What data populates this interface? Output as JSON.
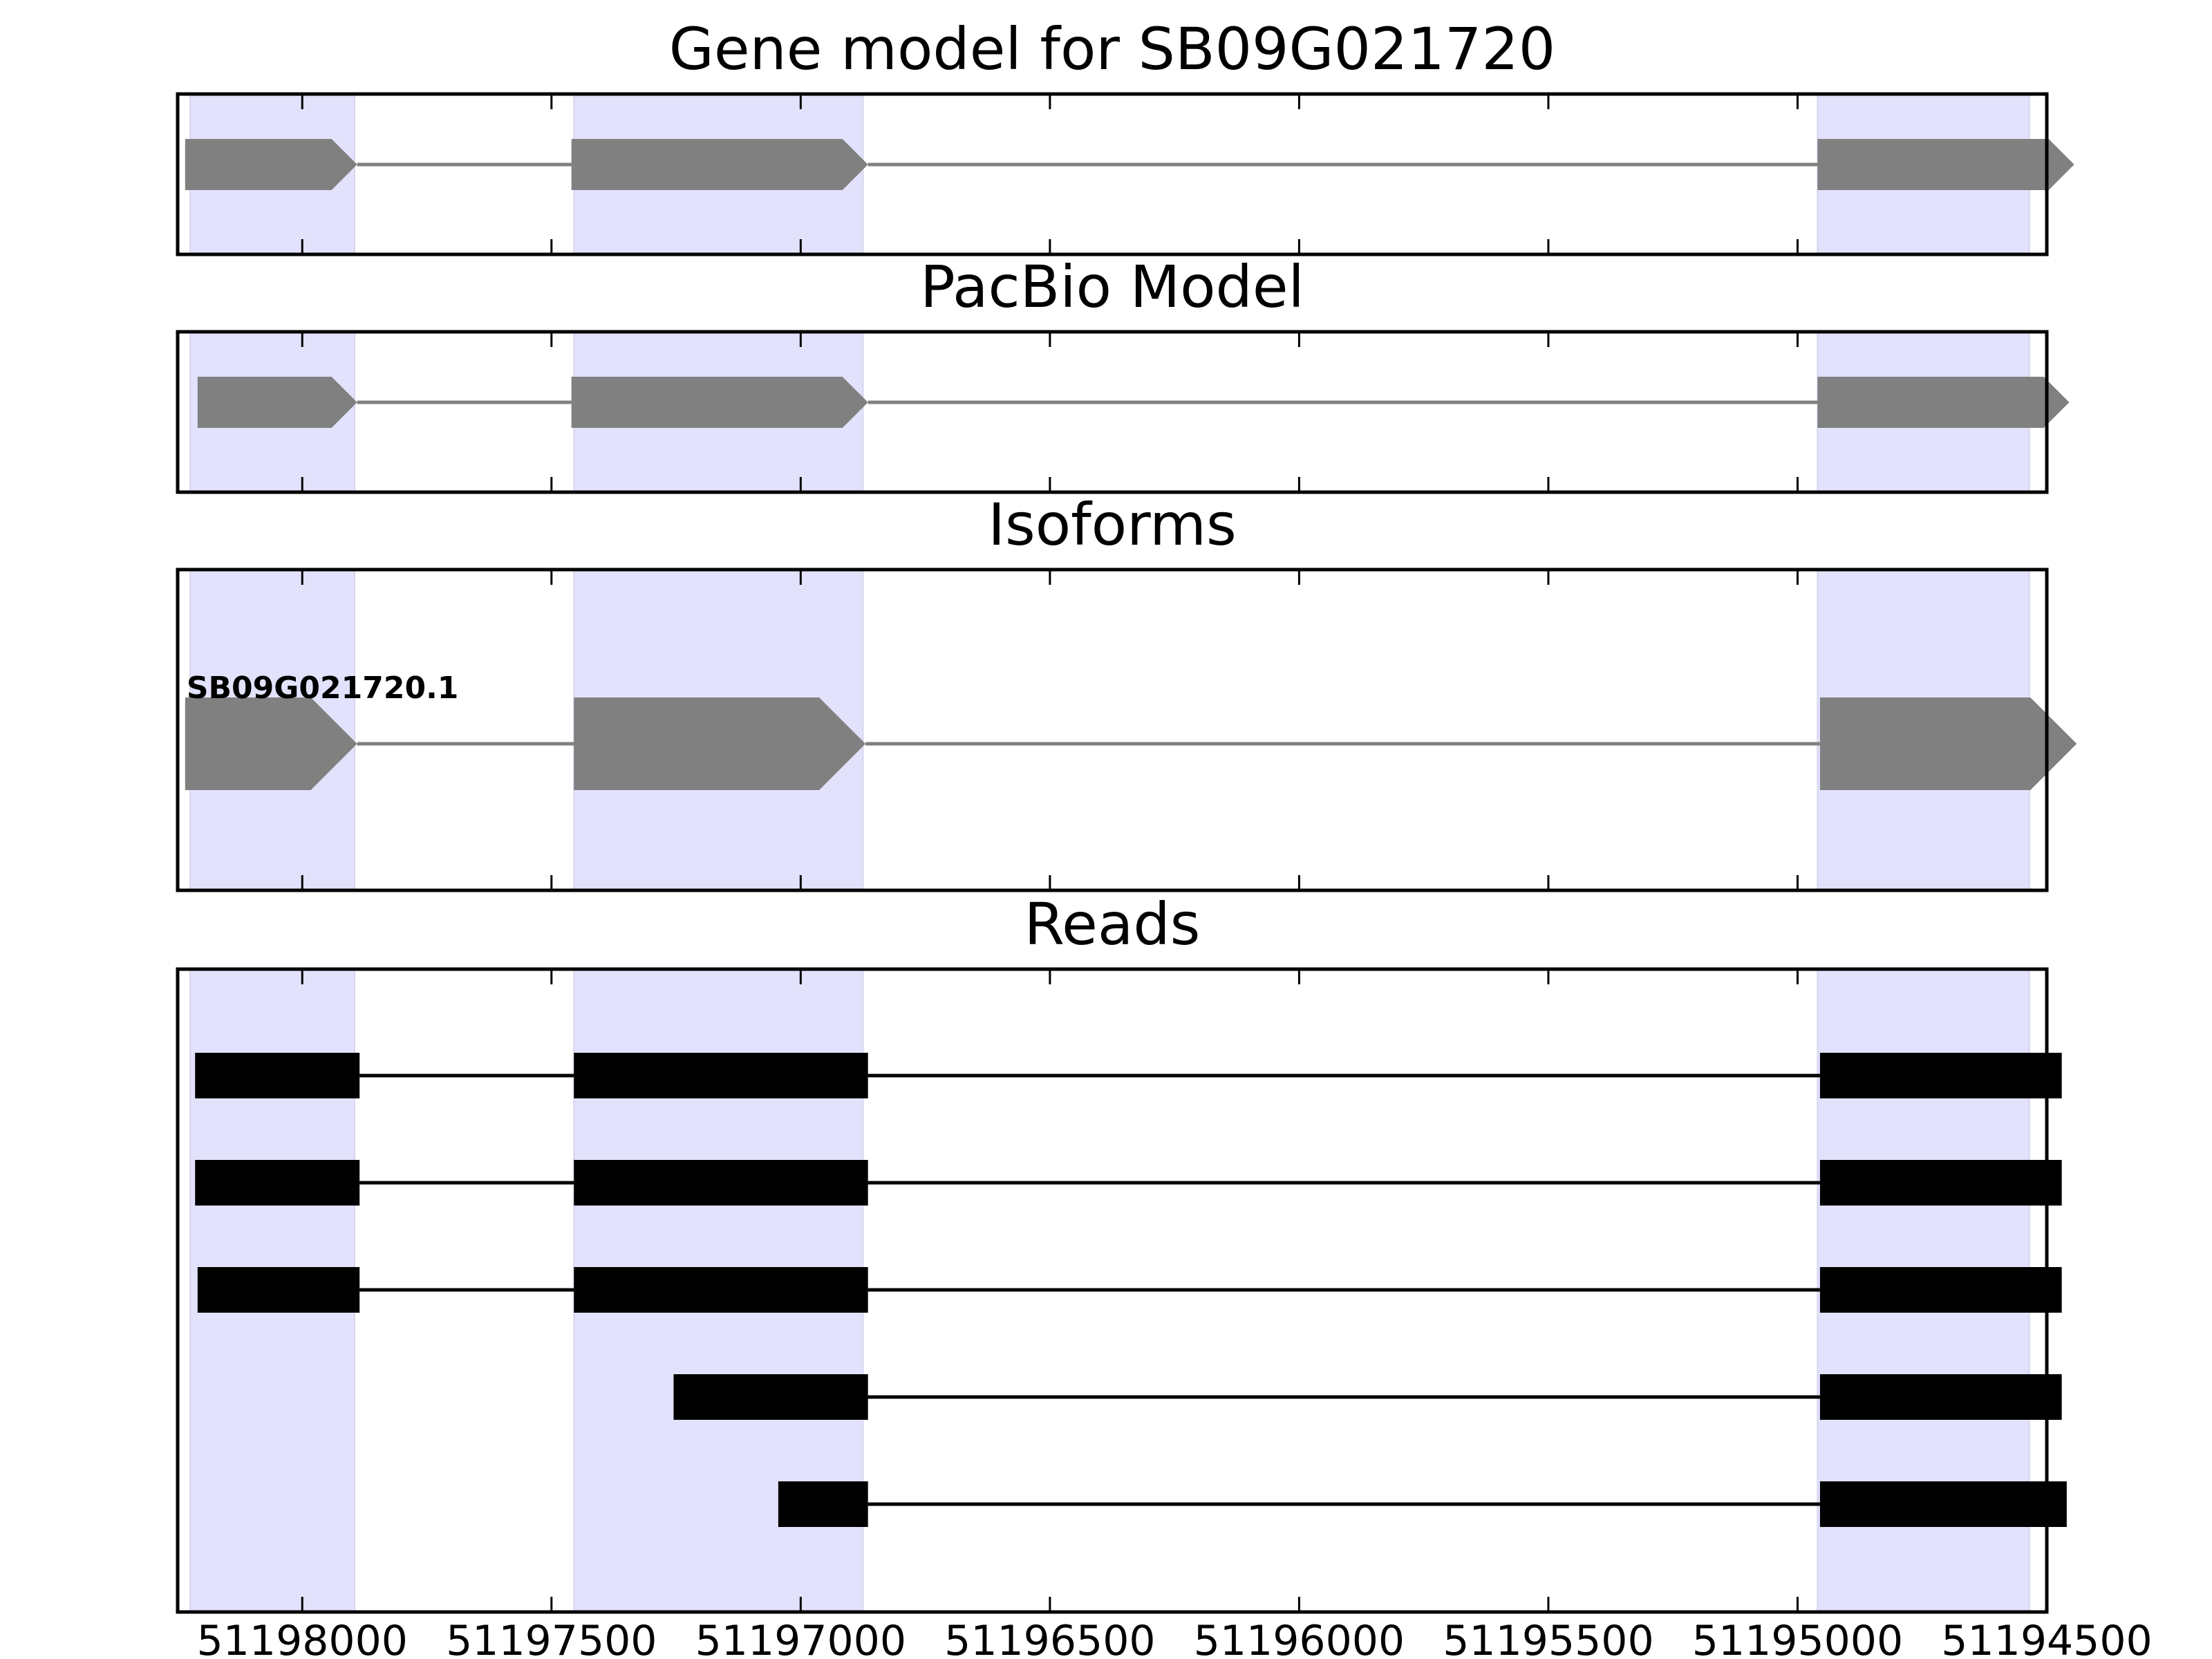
{
  "chart_data": {
    "type": "gene_model_tracks",
    "xlim": [
      51198250,
      51194500
    ],
    "x_ticks": [
      51198000,
      51197500,
      51197000,
      51196500,
      51196000,
      51195500,
      51195000,
      51194500
    ],
    "x_tick_labels": [
      "51198000",
      "51197500",
      "51197000",
      "51196500",
      "51196000",
      "51195500",
      "51195000",
      "51194500"
    ],
    "exon_regions": [
      [
        51198225,
        51197895
      ],
      [
        51197455,
        51196875
      ],
      [
        51194960,
        51194535
      ]
    ],
    "colors": {
      "highlight": "#e2e2fc",
      "model": "#808080",
      "reads": "#000000"
    },
    "panels": [
      {
        "id": "gene-model",
        "title": "Gene model for SB09G021720",
        "kind": "model",
        "exons": [
          [
            51198235,
            51197890
          ],
          [
            51197460,
            51196865
          ],
          [
            51194960,
            51194445
          ]
        ]
      },
      {
        "id": "pacbio-model",
        "title": "PacBio Model",
        "kind": "model",
        "exons": [
          [
            51198210,
            51197890
          ],
          [
            51197460,
            51196865
          ],
          [
            51194960,
            51194455
          ]
        ]
      },
      {
        "id": "isoforms",
        "title": "Isoforms",
        "kind": "isoforms",
        "isoforms": [
          {
            "name": "SB09G021720.1",
            "exons": [
              [
                51198235,
                51197890
              ],
              [
                51197455,
                51196870
              ],
              [
                51194955,
                51194440
              ]
            ]
          }
        ]
      },
      {
        "id": "reads",
        "title": "Reads",
        "kind": "reads",
        "reads": [
          [
            [
              51198215,
              51197885
            ],
            [
              51197455,
              51196865
            ],
            [
              51194955,
              51194470
            ]
          ],
          [
            [
              51198215,
              51197885
            ],
            [
              51197455,
              51196865
            ],
            [
              51194955,
              51194470
            ]
          ],
          [
            [
              51198210,
              51197885
            ],
            [
              51197455,
              51196865
            ],
            [
              51194955,
              51194470
            ]
          ],
          [
            [
              51197255,
              51196865
            ],
            [
              51194955,
              51194470
            ]
          ],
          [
            [
              51197045,
              51196865
            ],
            [
              51194955,
              51194460
            ]
          ]
        ]
      }
    ]
  }
}
